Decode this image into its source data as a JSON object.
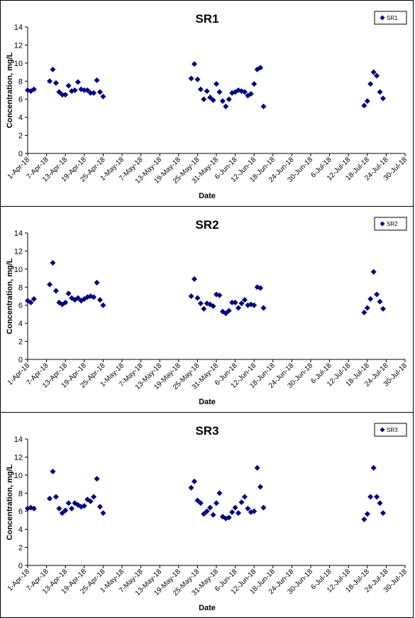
{
  "chart_data": [
    {
      "type": "scatter",
      "title": "SR1",
      "xlabel": "Date",
      "ylabel": "Concentration, mg/L",
      "ylim": [
        0,
        14
      ],
      "yticks": [
        0,
        2,
        4,
        6,
        8,
        10,
        12,
        14
      ],
      "xlim": [
        "2018-04-01",
        "2018-07-30"
      ],
      "xtick_labels": [
        "1-Apr-18",
        "7-Apr-18",
        "13-Apr-18",
        "19-Apr-18",
        "25-Apr-18",
        "1-May-18",
        "7-May-18",
        "13-May-18",
        "19-May-18",
        "25-May-18",
        "31-May-18",
        "6-Jun-18",
        "12-Jun-18",
        "18-Jun-18",
        "24-Jun-18",
        "30-Jun-18",
        "6-Jul-18",
        "12-Jul-18",
        "18-Jul-18",
        "24-Jul-18",
        "30-Jul-18"
      ],
      "grid": false,
      "legend_position": "top-right",
      "marker_color": "#000080",
      "series": [
        {
          "name": "SR1",
          "points": [
            {
              "x": "2018-04-01",
              "y": 7.0
            },
            {
              "x": "2018-04-02",
              "y": 6.9
            },
            {
              "x": "2018-04-03",
              "y": 7.1
            },
            {
              "x": "2018-04-08",
              "y": 8.0
            },
            {
              "x": "2018-04-09",
              "y": 9.3
            },
            {
              "x": "2018-04-10",
              "y": 7.8
            },
            {
              "x": "2018-04-11",
              "y": 6.8
            },
            {
              "x": "2018-04-12",
              "y": 6.5
            },
            {
              "x": "2018-04-13",
              "y": 6.5
            },
            {
              "x": "2018-04-14",
              "y": 7.5
            },
            {
              "x": "2018-04-15",
              "y": 6.9
            },
            {
              "x": "2018-04-16",
              "y": 7.0
            },
            {
              "x": "2018-04-17",
              "y": 7.9
            },
            {
              "x": "2018-04-18",
              "y": 7.1
            },
            {
              "x": "2018-04-19",
              "y": 7.0
            },
            {
              "x": "2018-04-20",
              "y": 7.0
            },
            {
              "x": "2018-04-21",
              "y": 6.7
            },
            {
              "x": "2018-04-22",
              "y": 6.7
            },
            {
              "x": "2018-04-23",
              "y": 8.1
            },
            {
              "x": "2018-04-24",
              "y": 6.8
            },
            {
              "x": "2018-04-25",
              "y": 6.3
            },
            {
              "x": "2018-05-23",
              "y": 8.3
            },
            {
              "x": "2018-05-24",
              "y": 9.9
            },
            {
              "x": "2018-05-25",
              "y": 8.2
            },
            {
              "x": "2018-05-26",
              "y": 7.1
            },
            {
              "x": "2018-05-27",
              "y": 6.0
            },
            {
              "x": "2018-05-28",
              "y": 6.9
            },
            {
              "x": "2018-05-29",
              "y": 6.2
            },
            {
              "x": "2018-05-30",
              "y": 5.9
            },
            {
              "x": "2018-05-31",
              "y": 7.7
            },
            {
              "x": "2018-06-01",
              "y": 6.8
            },
            {
              "x": "2018-06-02",
              "y": 5.8
            },
            {
              "x": "2018-06-03",
              "y": 5.2
            },
            {
              "x": "2018-06-04",
              "y": 6.0
            },
            {
              "x": "2018-06-05",
              "y": 6.7
            },
            {
              "x": "2018-06-06",
              "y": 6.8
            },
            {
              "x": "2018-06-07",
              "y": 7.0
            },
            {
              "x": "2018-06-08",
              "y": 6.9
            },
            {
              "x": "2018-06-09",
              "y": 6.8
            },
            {
              "x": "2018-06-10",
              "y": 6.4
            },
            {
              "x": "2018-06-11",
              "y": 6.6
            },
            {
              "x": "2018-06-12",
              "y": 7.7
            },
            {
              "x": "2018-06-13",
              "y": 9.3
            },
            {
              "x": "2018-06-14",
              "y": 9.5
            },
            {
              "x": "2018-06-15",
              "y": 5.2
            },
            {
              "x": "2018-07-17",
              "y": 5.3
            },
            {
              "x": "2018-07-18",
              "y": 5.8
            },
            {
              "x": "2018-07-19",
              "y": 7.7
            },
            {
              "x": "2018-07-20",
              "y": 9.0
            },
            {
              "x": "2018-07-21",
              "y": 8.6
            },
            {
              "x": "2018-07-22",
              "y": 6.8
            },
            {
              "x": "2018-07-23",
              "y": 6.1
            }
          ]
        }
      ]
    },
    {
      "type": "scatter",
      "title": "SR2",
      "xlabel": "Date",
      "ylabel": "Concentration, mg/L",
      "ylim": [
        0,
        14
      ],
      "yticks": [
        0,
        2,
        4,
        6,
        8,
        10,
        12,
        14
      ],
      "xlim": [
        "2018-04-01",
        "2018-07-30"
      ],
      "xtick_labels": [
        "1-Apr-18",
        "7-Apr-18",
        "13-Apr-18",
        "19-Apr-18",
        "25-Apr-18",
        "1-May-18",
        "7-May-18",
        "13-May-18",
        "19-May-18",
        "25-May-18",
        "31-May-18",
        "6-Jun-18",
        "12-Jun-18",
        "18-Jun-18",
        "24-Jun-18",
        "30-Jun-18",
        "6-Jul-18",
        "12-Jul-18",
        "18-Jul-18",
        "24-Jul-18",
        "30-Jul-18"
      ],
      "grid": false,
      "legend_position": "top-right",
      "marker_color": "#000080",
      "series": [
        {
          "name": "SR2",
          "points": [
            {
              "x": "2018-04-01",
              "y": 6.5
            },
            {
              "x": "2018-04-02",
              "y": 6.3
            },
            {
              "x": "2018-04-03",
              "y": 6.7
            },
            {
              "x": "2018-04-08",
              "y": 8.3
            },
            {
              "x": "2018-04-09",
              "y": 10.7
            },
            {
              "x": "2018-04-10",
              "y": 7.6
            },
            {
              "x": "2018-04-11",
              "y": 6.3
            },
            {
              "x": "2018-04-12",
              "y": 6.1
            },
            {
              "x": "2018-04-13",
              "y": 6.3
            },
            {
              "x": "2018-04-14",
              "y": 7.3
            },
            {
              "x": "2018-04-15",
              "y": 6.8
            },
            {
              "x": "2018-04-16",
              "y": 6.6
            },
            {
              "x": "2018-04-17",
              "y": 6.8
            },
            {
              "x": "2018-04-18",
              "y": 6.5
            },
            {
              "x": "2018-04-19",
              "y": 6.7
            },
            {
              "x": "2018-04-20",
              "y": 6.9
            },
            {
              "x": "2018-04-21",
              "y": 7.0
            },
            {
              "x": "2018-04-22",
              "y": 6.9
            },
            {
              "x": "2018-04-23",
              "y": 8.5
            },
            {
              "x": "2018-04-24",
              "y": 6.6
            },
            {
              "x": "2018-04-25",
              "y": 6.0
            },
            {
              "x": "2018-05-23",
              "y": 7.0
            },
            {
              "x": "2018-05-24",
              "y": 8.9
            },
            {
              "x": "2018-05-25",
              "y": 6.8
            },
            {
              "x": "2018-05-26",
              "y": 6.2
            },
            {
              "x": "2018-05-27",
              "y": 5.6
            },
            {
              "x": "2018-05-28",
              "y": 6.2
            },
            {
              "x": "2018-05-29",
              "y": 6.1
            },
            {
              "x": "2018-05-30",
              "y": 5.9
            },
            {
              "x": "2018-05-31",
              "y": 7.2
            },
            {
              "x": "2018-06-01",
              "y": 7.1
            },
            {
              "x": "2018-06-02",
              "y": 5.3
            },
            {
              "x": "2018-06-03",
              "y": 5.1
            },
            {
              "x": "2018-06-04",
              "y": 5.4
            },
            {
              "x": "2018-06-05",
              "y": 6.3
            },
            {
              "x": "2018-06-06",
              "y": 6.3
            },
            {
              "x": "2018-06-07",
              "y": 5.7
            },
            {
              "x": "2018-06-08",
              "y": 6.2
            },
            {
              "x": "2018-06-09",
              "y": 6.6
            },
            {
              "x": "2018-06-10",
              "y": 6.0
            },
            {
              "x": "2018-06-11",
              "y": 6.1
            },
            {
              "x": "2018-06-12",
              "y": 6.0
            },
            {
              "x": "2018-06-13",
              "y": 8.0
            },
            {
              "x": "2018-06-14",
              "y": 7.9
            },
            {
              "x": "2018-06-15",
              "y": 5.7
            },
            {
              "x": "2018-07-17",
              "y": 5.2
            },
            {
              "x": "2018-07-18",
              "y": 5.7
            },
            {
              "x": "2018-07-19",
              "y": 6.7
            },
            {
              "x": "2018-07-20",
              "y": 9.7
            },
            {
              "x": "2018-07-21",
              "y": 7.2
            },
            {
              "x": "2018-07-22",
              "y": 6.4
            },
            {
              "x": "2018-07-23",
              "y": 5.6
            }
          ]
        }
      ]
    },
    {
      "type": "scatter",
      "title": "SR3",
      "xlabel": "Date",
      "ylabel": "Concentration, mg/L",
      "ylim": [
        0,
        14
      ],
      "yticks": [
        0,
        2,
        4,
        6,
        8,
        10,
        12,
        14
      ],
      "xlim": [
        "2018-04-01",
        "2018-07-30"
      ],
      "xtick_labels": [
        "1-Apr-18",
        "7-Apr-18",
        "13-Apr-18",
        "19-Apr-18",
        "25-Apr-18",
        "1-May-18",
        "7-May-18",
        "13-May-18",
        "19-May-18",
        "25-May-18",
        "31-May-18",
        "6-Jun-18",
        "12-Jun-18",
        "18-Jun-18",
        "24-Jun-18",
        "30-Jun-18",
        "6-Jul-18",
        "12-Jul-18",
        "18-Jul-18",
        "24-Jul-18",
        "30-Jul-18"
      ],
      "grid": false,
      "legend_position": "top-right",
      "marker_color": "#000080",
      "series": [
        {
          "name": "SR3",
          "points": [
            {
              "x": "2018-04-01",
              "y": 6.3
            },
            {
              "x": "2018-04-02",
              "y": 6.4
            },
            {
              "x": "2018-04-03",
              "y": 6.3
            },
            {
              "x": "2018-04-08",
              "y": 7.4
            },
            {
              "x": "2018-04-09",
              "y": 10.4
            },
            {
              "x": "2018-04-10",
              "y": 7.6
            },
            {
              "x": "2018-04-11",
              "y": 6.3
            },
            {
              "x": "2018-04-12",
              "y": 5.8
            },
            {
              "x": "2018-04-13",
              "y": 6.1
            },
            {
              "x": "2018-04-14",
              "y": 6.9
            },
            {
              "x": "2018-04-15",
              "y": 6.3
            },
            {
              "x": "2018-04-16",
              "y": 6.9
            },
            {
              "x": "2018-04-17",
              "y": 6.7
            },
            {
              "x": "2018-04-18",
              "y": 6.5
            },
            {
              "x": "2018-04-19",
              "y": 6.6
            },
            {
              "x": "2018-04-20",
              "y": 7.3
            },
            {
              "x": "2018-04-21",
              "y": 7.1
            },
            {
              "x": "2018-04-22",
              "y": 7.6
            },
            {
              "x": "2018-04-23",
              "y": 9.6
            },
            {
              "x": "2018-04-24",
              "y": 6.5
            },
            {
              "x": "2018-04-25",
              "y": 5.8
            },
            {
              "x": "2018-05-23",
              "y": 8.6
            },
            {
              "x": "2018-05-24",
              "y": 9.3
            },
            {
              "x": "2018-05-25",
              "y": 7.2
            },
            {
              "x": "2018-05-26",
              "y": 6.9
            },
            {
              "x": "2018-05-27",
              "y": 5.7
            },
            {
              "x": "2018-05-28",
              "y": 6.0
            },
            {
              "x": "2018-05-29",
              "y": 6.4
            },
            {
              "x": "2018-05-30",
              "y": 5.6
            },
            {
              "x": "2018-05-31",
              "y": 6.9
            },
            {
              "x": "2018-06-01",
              "y": 8.0
            },
            {
              "x": "2018-06-02",
              "y": 5.4
            },
            {
              "x": "2018-06-03",
              "y": 5.2
            },
            {
              "x": "2018-06-04",
              "y": 5.3
            },
            {
              "x": "2018-06-05",
              "y": 5.9
            },
            {
              "x": "2018-06-06",
              "y": 6.4
            },
            {
              "x": "2018-06-07",
              "y": 5.8
            },
            {
              "x": "2018-06-08",
              "y": 7.0
            },
            {
              "x": "2018-06-09",
              "y": 7.6
            },
            {
              "x": "2018-06-10",
              "y": 6.3
            },
            {
              "x": "2018-06-11",
              "y": 5.9
            },
            {
              "x": "2018-06-12",
              "y": 6.0
            },
            {
              "x": "2018-06-13",
              "y": 10.8
            },
            {
              "x": "2018-06-14",
              "y": 8.7
            },
            {
              "x": "2018-06-15",
              "y": 6.4
            },
            {
              "x": "2018-07-17",
              "y": 5.1
            },
            {
              "x": "2018-07-18",
              "y": 5.7
            },
            {
              "x": "2018-07-19",
              "y": 7.6
            },
            {
              "x": "2018-07-20",
              "y": 10.8
            },
            {
              "x": "2018-07-21",
              "y": 7.6
            },
            {
              "x": "2018-07-22",
              "y": 6.9
            },
            {
              "x": "2018-07-23",
              "y": 5.8
            }
          ]
        }
      ]
    }
  ]
}
